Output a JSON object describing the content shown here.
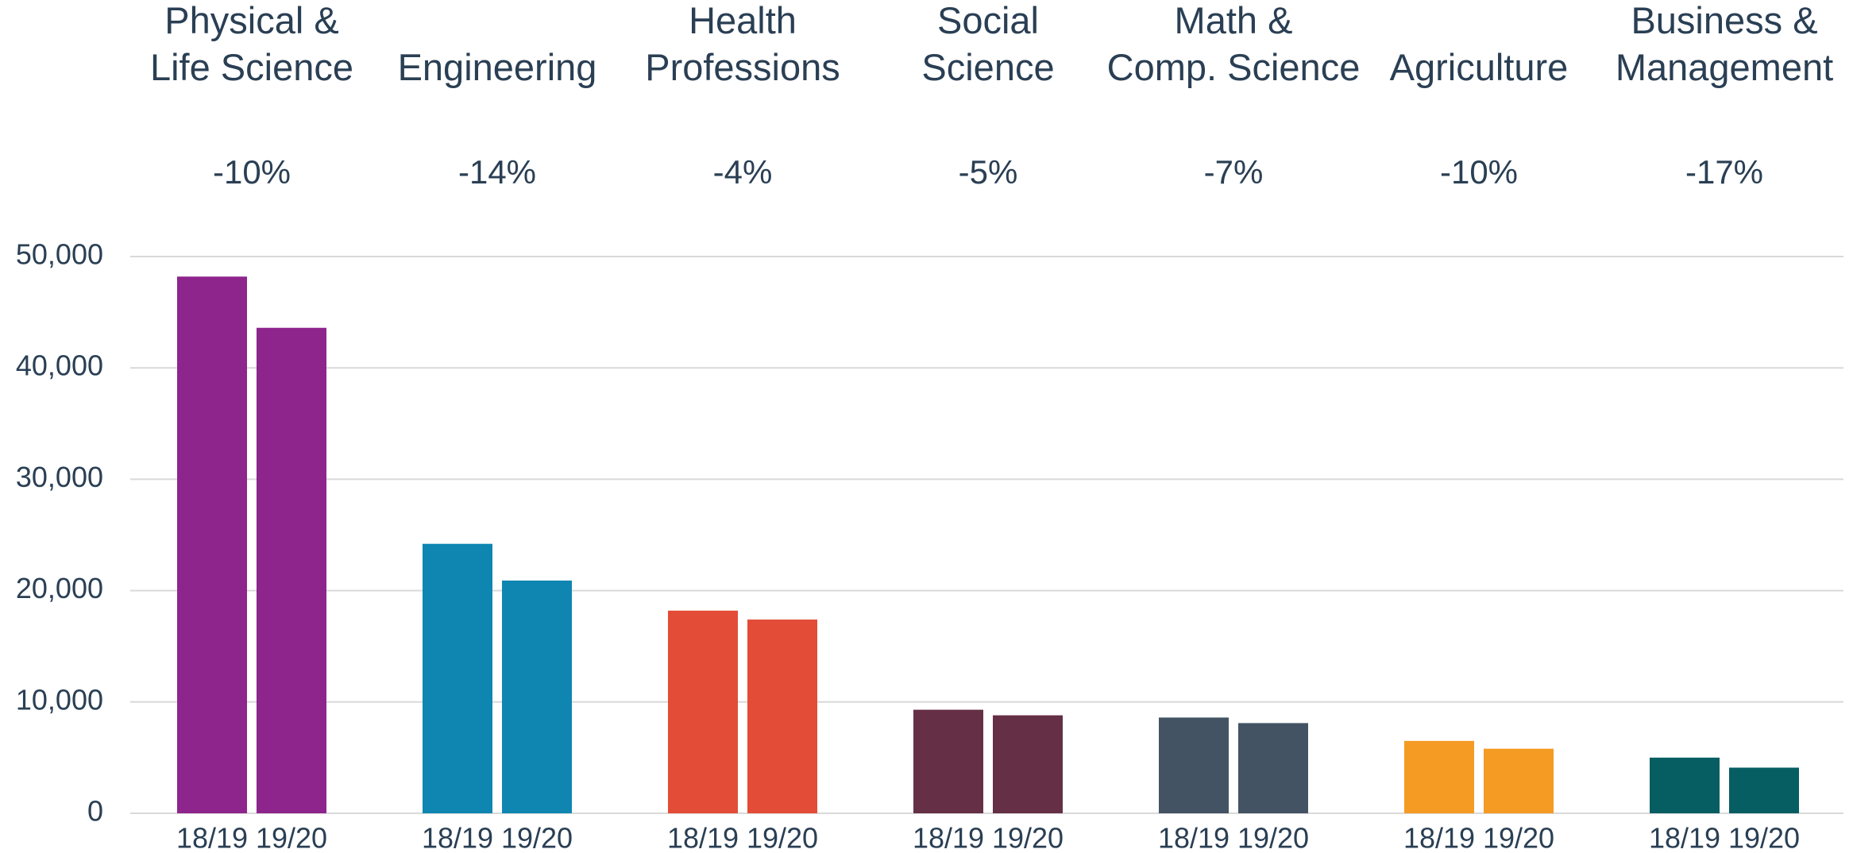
{
  "chart_data": {
    "type": "bar",
    "categories": [
      [
        "Physical &",
        "Life Science"
      ],
      [
        "Engineering"
      ],
      [
        "Health",
        "Professions"
      ],
      [
        "Social",
        "Science"
      ],
      [
        "Math &",
        "Comp. Science"
      ],
      [
        "Agriculture"
      ],
      [
        "Business &",
        "Management"
      ]
    ],
    "annotations": [
      "-10%",
      "-14%",
      "-4%",
      "-5%",
      "-7%",
      "-10%",
      "-17%"
    ],
    "colors": [
      "#8e258d",
      "#0e86b1",
      "#e34c37",
      "#652f45",
      "#435364",
      "#f59a23",
      "#065e63"
    ],
    "series": [
      {
        "name": "18/19",
        "values": [
          48200,
          24200,
          18200,
          9300,
          8600,
          6500,
          5000
        ]
      },
      {
        "name": "19/20",
        "values": [
          43600,
          20900,
          17400,
          8800,
          8100,
          5800,
          4100
        ]
      }
    ],
    "ylim": [
      0,
      50000
    ],
    "yticks": [
      0,
      {
        "value": 10000,
        "label": "10,000"
      },
      {
        "value": 20000,
        "label": "20,000"
      },
      {
        "value": 30000,
        "label": "30,000"
      },
      {
        "value": 40000,
        "label": "40,000"
      },
      {
        "value": 50000,
        "label": "50,000"
      }
    ],
    "grid": true
  }
}
